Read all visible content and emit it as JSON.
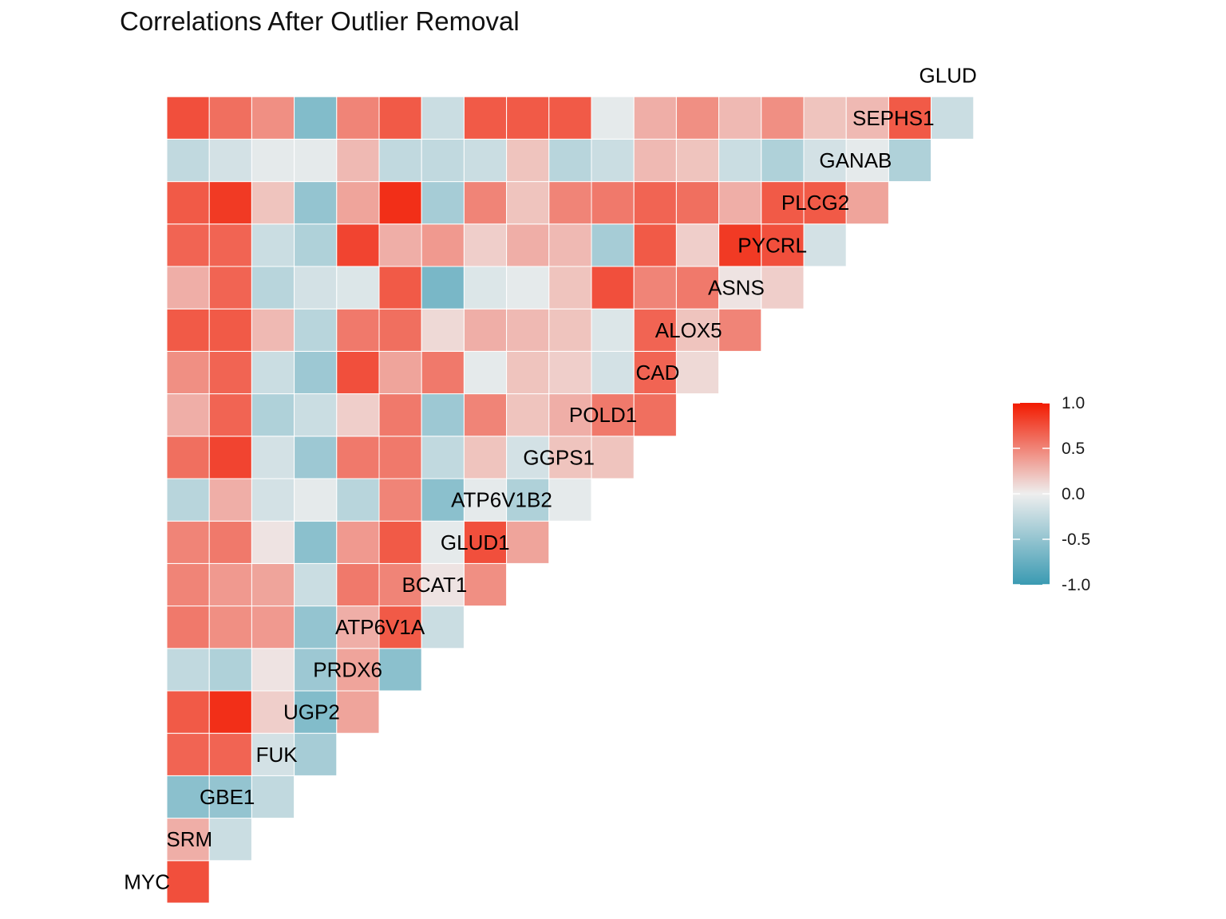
{
  "chart_data": {
    "type": "heatmap",
    "title": "Correlations After Outlier Removal",
    "variables": [
      "MYC",
      "SRM",
      "GBE1",
      "FUK",
      "UGP2",
      "PRDX6",
      "ATP6V1A",
      "BCAT1",
      "GLUD1",
      "ATP6V1B2",
      "GGPS1",
      "POLD1",
      "CAD",
      "ALOX5",
      "ASNS",
      "PYCRL",
      "PLCG2",
      "GANAB",
      "SEPHS1",
      "GLUD"
    ],
    "matrix": [
      [
        0.75
      ],
      [
        0.3,
        -0.2
      ],
      [
        -0.55,
        -0.5,
        -0.25
      ],
      [
        0.65,
        0.65,
        -0.15,
        -0.4
      ],
      [
        0.7,
        0.9,
        0.15,
        -0.6,
        0.35
      ],
      [
        -0.25,
        -0.35,
        0.05,
        -0.45,
        0.35,
        -0.55
      ],
      [
        0.55,
        0.45,
        0.4,
        -0.5,
        0.3,
        0.7,
        -0.2
      ],
      [
        0.5,
        0.4,
        0.35,
        -0.2,
        0.55,
        0.5,
        0.05,
        0.45
      ],
      [
        0.5,
        0.55,
        0.05,
        -0.55,
        0.4,
        0.7,
        -0.05,
        0.75,
        0.35
      ],
      [
        -0.3,
        0.3,
        -0.15,
        -0.05,
        -0.3,
        0.5,
        -0.55,
        -0.05,
        -0.35,
        -0.05
      ],
      [
        0.6,
        0.8,
        -0.15,
        -0.45,
        0.55,
        0.55,
        -0.25,
        0.2,
        -0.15,
        0.2,
        0.2
      ],
      [
        0.3,
        0.65,
        -0.35,
        -0.2,
        0.15,
        0.55,
        -0.45,
        0.5,
        0.2,
        0.3,
        0.55,
        0.6
      ],
      [
        0.45,
        0.65,
        -0.2,
        -0.45,
        0.75,
        0.35,
        0.55,
        -0.05,
        0.2,
        0.15,
        -0.15,
        0.65,
        0.1
      ],
      [
        0.7,
        0.7,
        0.25,
        -0.3,
        0.55,
        0.6,
        0.1,
        0.3,
        0.25,
        0.2,
        -0.1,
        0.65,
        0.2,
        0.5
      ],
      [
        0.3,
        0.65,
        -0.3,
        -0.15,
        -0.1,
        0.7,
        -0.65,
        -0.1,
        -0.05,
        0.2,
        0.75,
        0.5,
        0.55,
        0.05,
        0.15
      ],
      [
        0.65,
        0.65,
        -0.2,
        -0.35,
        0.8,
        0.3,
        0.4,
        0.15,
        0.3,
        0.25,
        -0.4,
        0.7,
        0.15,
        0.85,
        0.75,
        -0.15
      ],
      [
        0.7,
        0.85,
        0.2,
        -0.5,
        0.35,
        0.9,
        -0.4,
        0.5,
        0.2,
        0.5,
        0.55,
        0.65,
        0.6,
        0.3,
        0.7,
        0.7,
        0.35
      ],
      [
        -0.25,
        -0.15,
        -0.05,
        -0.05,
        0.25,
        -0.25,
        -0.25,
        -0.2,
        0.2,
        -0.3,
        -0.2,
        0.25,
        0.2,
        -0.2,
        -0.35,
        -0.15,
        -0.05,
        -0.35
      ],
      [
        0.75,
        0.6,
        0.45,
        -0.6,
        0.5,
        0.7,
        -0.2,
        0.7,
        0.7,
        0.7,
        -0.05,
        0.3,
        0.45,
        0.25,
        0.45,
        0.2,
        0.25,
        0.7,
        -0.2
      ]
    ],
    "legend": {
      "placement": "right",
      "ticks": [
        "1.0",
        "0.5",
        "0.0",
        "-0.5",
        "-1.0"
      ],
      "range": [
        -1,
        1
      ]
    },
    "colors": {
      "low": "#3a9ab2",
      "mid": "#eeeeee",
      "high": "#f21a00"
    }
  }
}
